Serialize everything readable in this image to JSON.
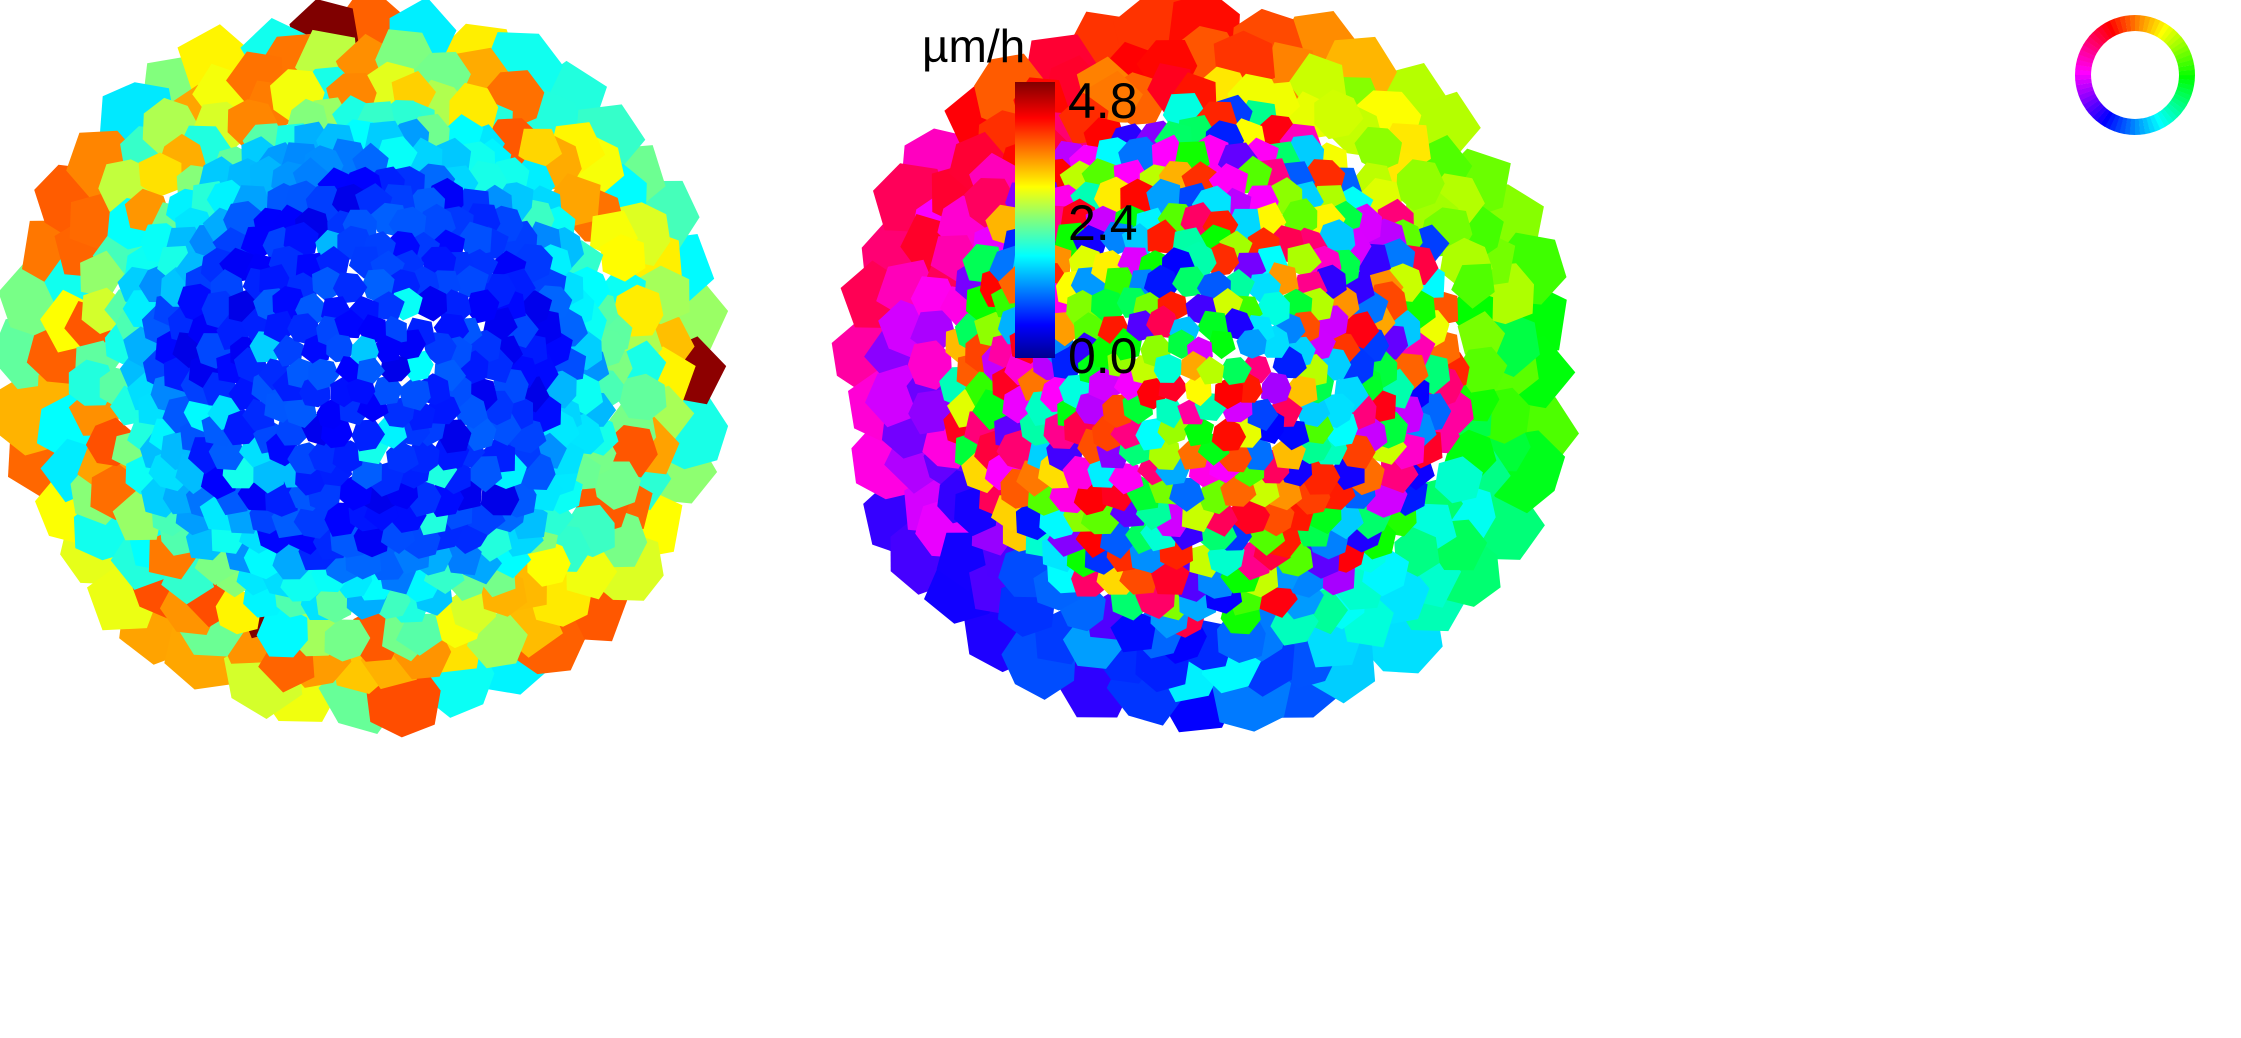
{
  "colorbar": {
    "unit": "µm/h",
    "ticks": [
      "4.8",
      "2.4",
      "0.0"
    ],
    "range": [
      0.0,
      4.8
    ],
    "colormap": "jet"
  },
  "panels": {
    "speed_map": {
      "description": "cell speed",
      "core_color": "#0a2ad8",
      "rim_colors": [
        "#33ccff",
        "#7fffaa",
        "#ffee00",
        "#ff8c00"
      ]
    },
    "direction_map": {
      "description": "cell migration direction",
      "legend_icon": "hue-color-wheel-icon",
      "hues": [
        "#ff0000",
        "#ff8800",
        "#ffff00",
        "#00ff00",
        "#00ffff",
        "#0000ff",
        "#ff00ff"
      ]
    }
  }
}
